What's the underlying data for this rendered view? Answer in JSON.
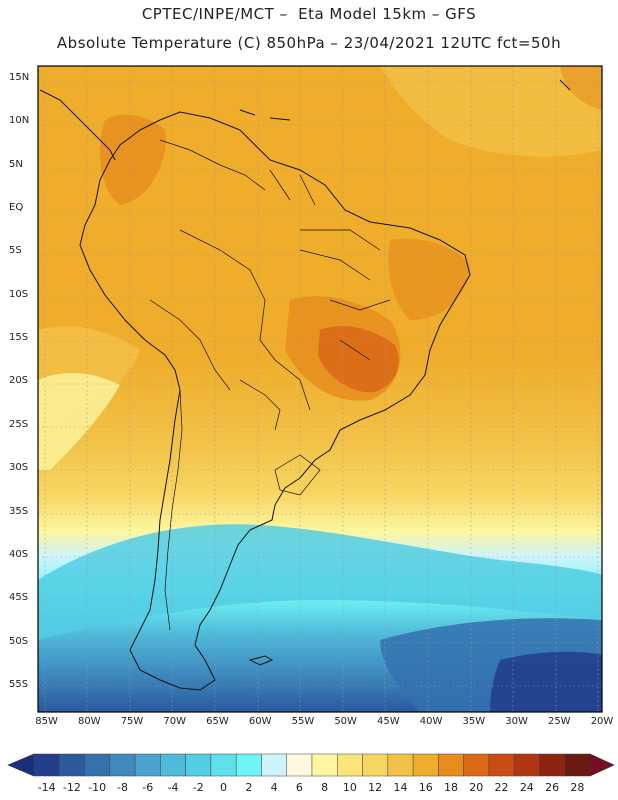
{
  "header": {
    "line1": "CPTEC/INPE/MCT –  Eta Model 15km – GFS",
    "line2": "Absolute Temperature (C) 850hPa – 23/04/2021 12UTC fct=50h"
  },
  "map": {
    "lat_labels": [
      "15N",
      "10N",
      "5N",
      "EQ",
      "5S",
      "10S",
      "15S",
      "20S",
      "25S",
      "30S",
      "35S",
      "40S",
      "45S",
      "50S",
      "55S"
    ],
    "lon_labels": [
      "85W",
      "80W",
      "75W",
      "70W",
      "65W",
      "60W",
      "55W",
      "50W",
      "45W",
      "40W",
      "35W",
      "30W",
      "25W",
      "20W"
    ],
    "lat_values": [
      15,
      10,
      5,
      0,
      -5,
      -10,
      -15,
      -20,
      -25,
      -30,
      -35,
      -40,
      -45,
      -50,
      -55
    ],
    "lon_values": [
      -85,
      -80,
      -75,
      -70,
      -65,
      -60,
      -55,
      -50,
      -45,
      -40,
      -35,
      -30,
      -25,
      -20
    ],
    "domain": {
      "lon_min": -86,
      "lon_max": -20,
      "lat_min": -58,
      "lat_max": 16.5
    }
  },
  "colorbar": {
    "labels": [
      "-14",
      "-12",
      "-10",
      "-8",
      "-6",
      "-4",
      "-2",
      "0",
      "2",
      "4",
      "6",
      "8",
      "10",
      "12",
      "14",
      "16",
      "18",
      "20",
      "22",
      "24",
      "26",
      "28"
    ],
    "colors": [
      "#233f8c",
      "#2b5a9e",
      "#3471ae",
      "#3f8abf",
      "#4aa2cf",
      "#4fbad9",
      "#52cde4",
      "#5fe0ef",
      "#6ff5f7",
      "#cdf4fb",
      "#fff8de",
      "#fdf6a0",
      "#fbe57b",
      "#f7d561",
      "#f2c148",
      "#efad2b",
      "#e68d1e",
      "#dc6a17",
      "#c94c14",
      "#b03611",
      "#8e2410",
      "#6b1a10"
    ],
    "under_color": "#1b2e78",
    "over_color": "#7a0d22"
  }
}
